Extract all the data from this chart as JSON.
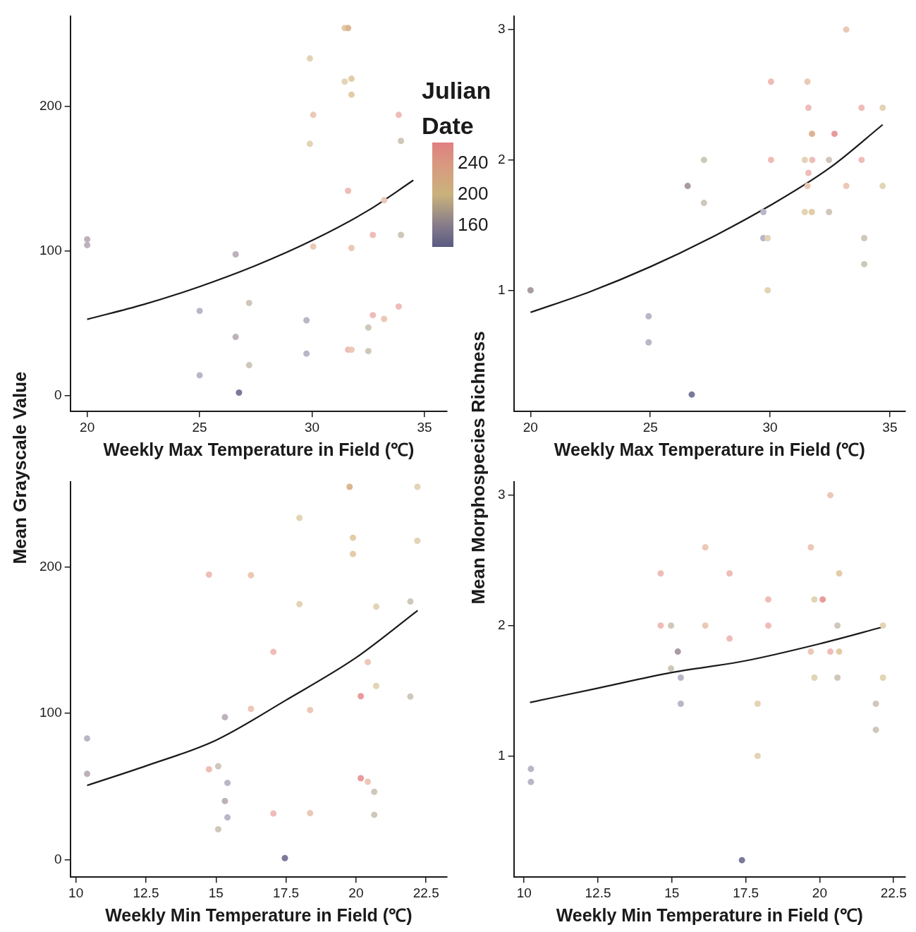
{
  "chart_data": [
    {
      "type": "scatter",
      "xlabel": "Weekly Max Temperature in Field (℃)",
      "ylabel": "Mean Grayscale Value",
      "xlim": [
        19.25,
        36
      ],
      "xticks": [
        20,
        25,
        30,
        35
      ],
      "ylim": [
        -11,
        262
      ],
      "yticks": [
        0,
        100,
        200
      ],
      "marker": "circle",
      "clabel": "Julian Date",
      "clim": [
        133,
        267
      ],
      "cticks": [
        160,
        200,
        240
      ],
      "series": [
        {
          "type": "scatter",
          "x": [
            20,
            20,
            25,
            25,
            26.6,
            26.6,
            26.75,
            27.2,
            27.2,
            29.75,
            29.75,
            29.9,
            29.9,
            30.05,
            30.05,
            31.45,
            31.6,
            31.45,
            31.75,
            31.75,
            31.6,
            31.75,
            31.6,
            31.75,
            32.5,
            32.5,
            32.7,
            32.7,
            33.2,
            33.2,
            33.85,
            33.85,
            33.95,
            33.95
          ],
          "values": [
            108,
            104,
            58.5,
            14,
            97.6,
            40.5,
            2,
            64,
            21,
            52,
            29,
            233,
            174,
            194,
            103,
            254,
            254,
            217,
            219,
            208,
            141.5,
            102,
            31.7,
            31.7,
            47,
            30.7,
            111,
            55.6,
            135,
            53,
            194,
            61.5,
            176,
            111
          ],
          "colors": [
            "#bdb1bb",
            "#bdb1bb",
            "#b9b6c8",
            "#b9b6c8",
            "#bdb1bb",
            "#bdb1bb",
            "#7b7a9c",
            "#cfc7ba",
            "#cfc7ba",
            "#b9b6c8",
            "#b9b6c8",
            "#e2d4b4",
            "#e2d4b4",
            "#ecc8b6",
            "#ecc8b6",
            "#e4cca8",
            "#dcb592",
            "#e2d4b4",
            "#e4cca8",
            "#e4cca8",
            "#efbcb8",
            "#ecc8b6",
            "#efbcb8",
            "#ecc8b6",
            "#cfc7ba",
            "#cfc7ba",
            "#efbcb8",
            "#efbcb8",
            "#ecc8b6",
            "#ecc8b6",
            "#efbcb8",
            "#efbcb8",
            "#cfc7ba",
            "#cfc7ba"
          ]
        },
        {
          "type": "line",
          "color": "#1a1a1a",
          "marker": "none",
          "x": [
            20,
            22.5,
            25,
            27.5,
            30,
            32.5,
            34.5
          ],
          "values": [
            52.7,
            62.9,
            75.3,
            89.9,
            107.2,
            128,
            148.8
          ]
        }
      ]
    },
    {
      "type": "scatter",
      "xlabel": "Weekly Max Temperature in Field (℃)",
      "ylabel": "Mean Morphospecies Richness",
      "xlim": [
        19.3,
        35.65
      ],
      "xticks": [
        20,
        25,
        30,
        35
      ],
      "ylim": [
        0.07,
        3.1
      ],
      "yticks": [
        1,
        2,
        3
      ],
      "marker": "circle",
      "series": [
        {
          "type": "scatter",
          "x": [
            20,
            24.93,
            24.93,
            26.56,
            26.73,
            27.24,
            27.24,
            29.72,
            29.72,
            29.9,
            29.9,
            30.04,
            30.04,
            31.56,
            31.6,
            31.75,
            31.45,
            31.76,
            31.6,
            31.56,
            31.45,
            31.74,
            32.46,
            32.46,
            32.69,
            33.18,
            33.18,
            33.82,
            33.82,
            33.93,
            33.93,
            34.7,
            34.7
          ],
          "values": [
            1.0,
            0.8,
            0.6,
            1.8,
            0.2,
            2.0,
            1.67,
            1.6,
            1.4,
            1.4,
            1.0,
            2.6,
            2.0,
            2.6,
            2.4,
            2.2,
            2.0,
            2.0,
            1.9,
            1.8,
            1.6,
            1.6,
            2.0,
            1.6,
            2.2,
            3.0,
            1.8,
            2.4,
            2.0,
            1.4,
            1.2,
            2.4,
            1.8
          ],
          "colors": [
            "#a89ba3",
            "#b9b6c8",
            "#b9b6c8",
            "#a89ba3",
            "#7b7a9c",
            "#cfc7ba",
            "#cfc7ba",
            "#b9b6c8",
            "#b9b6c8",
            "#e2d4b4",
            "#e2d4b4",
            "#efbcb8",
            "#efbcb8",
            "#ecc8b6",
            "#efbcb8",
            "#ddb394",
            "#e2d4b4",
            "#efbcb8",
            "#efbcb8",
            "#ecc8b6",
            "#e2d4b4",
            "#e4cca8",
            "#cfc7ba",
            "#cfc7ba",
            "#e99a9d",
            "#ecc8b6",
            "#ecc8b6",
            "#efbcb8",
            "#efbcb8",
            "#cfc7ba",
            "#cfc7ba",
            "#e2d4b4",
            "#e2d4b4"
          ]
        },
        {
          "type": "line",
          "color": "#1a1a1a",
          "marker": "none",
          "x": [
            20,
            22.5,
            25,
            27.5,
            30,
            32.5,
            34.7
          ],
          "values": [
            0.83,
            0.99,
            1.18,
            1.4,
            1.65,
            1.94,
            2.27
          ]
        }
      ]
    },
    {
      "type": "scatter",
      "xlabel": "Weekly Min Temperature in Field (℃)",
      "xlim": [
        9.8,
        23.25
      ],
      "xticks": [
        10,
        12.5,
        15,
        17.5,
        20,
        22.5
      ],
      "ylim": [
        -12,
        258
      ],
      "yticks": [
        0,
        100,
        200
      ],
      "marker": "circle",
      "series": [
        {
          "type": "scatter",
          "x": [
            10.4,
            10.4,
            14.75,
            14.75,
            15.08,
            15.08,
            15.32,
            15.32,
            15.41,
            15.41,
            16.25,
            16.25,
            17.05,
            17.05,
            17.46,
            17.98,
            17.98,
            18.36,
            18.36,
            19.77,
            19.89,
            19.89,
            20.17,
            20.17,
            20.42,
            20.42,
            20.65,
            20.65,
            20.72,
            20.72,
            21.94,
            21.94,
            22.19,
            22.19
          ],
          "values": [
            82.8,
            58.6,
            194.8,
            61.7,
            63.8,
            20.7,
            97.3,
            40,
            52.4,
            28.8,
            194.4,
            103,
            142,
            31.5,
            1,
            233.6,
            174.6,
            102.2,
            31.7,
            254.8,
            220,
            208.9,
            111.7,
            55.6,
            135,
            53.2,
            46.3,
            30.6,
            172.9,
            118.7,
            176.4,
            111.4,
            254.8,
            217.9
          ],
          "colors": [
            "#b9b6c8",
            "#bdb1bb",
            "#efbcb8",
            "#efbcb8",
            "#cfc7ba",
            "#cfc7ba",
            "#bdb1bb",
            "#bdb1bb",
            "#b9b6c8",
            "#b9b6c8",
            "#ecc8b6",
            "#ecc8b6",
            "#efbcb8",
            "#efbcb8",
            "#7b7a9c",
            "#e2d4b4",
            "#e2d4b4",
            "#ecc8b6",
            "#ecc8b6",
            "#dcb592",
            "#e4cca8",
            "#e4cca8",
            "#e99a9d",
            "#e99a9d",
            "#ecc8b6",
            "#ecc8b6",
            "#cfc7ba",
            "#cfc7ba",
            "#e2d4b4",
            "#e2d4b4",
            "#cfc7ba",
            "#cfc7ba",
            "#e2d4b4",
            "#e2d4b4"
          ]
        },
        {
          "type": "line",
          "color": "#1a1a1a",
          "marker": "none",
          "x": [
            10.4,
            12.5,
            15,
            17.5,
            20,
            22.2
          ],
          "values": [
            50.7,
            64,
            81.6,
            109,
            138,
            170.2
          ]
        }
      ]
    },
    {
      "type": "scatter",
      "xlabel": "Weekly Min Temperature in Field (℃)",
      "xlim": [
        9.65,
        22.9
      ],
      "xticks": [
        10,
        12.5,
        15,
        17.5,
        20,
        22.5
      ],
      "ylim": [
        0.07,
        3.1
      ],
      "yticks": [
        1,
        2,
        3
      ],
      "marker": "circle",
      "series": [
        {
          "type": "scatter",
          "x": [
            10.23,
            10.23,
            14.62,
            14.62,
            14.97,
            14.97,
            15.2,
            15.3,
            15.3,
            16.13,
            16.13,
            16.95,
            16.95,
            17.37,
            17.9,
            17.9,
            18.26,
            18.26,
            19.7,
            19.7,
            19.82,
            19.82,
            20.1,
            20.36,
            20.36,
            20.6,
            20.6,
            20.66,
            20.66,
            21.9,
            21.9,
            22.14,
            22.14
          ],
          "values": [
            0.9,
            0.8,
            2.4,
            2.0,
            2.0,
            1.67,
            1.8,
            1.6,
            1.4,
            2.6,
            2.0,
            2.4,
            1.9,
            0.2,
            1.4,
            1.0,
            2.2,
            2.0,
            2.6,
            1.8,
            2.2,
            1.6,
            2.2,
            3.0,
            1.8,
            2.0,
            1.6,
            2.4,
            1.8,
            1.4,
            1.2,
            2.0,
            1.6
          ],
          "colors": [
            "#b9b6c8",
            "#b9b6c8",
            "#efbcb8",
            "#efbcb8",
            "#cfc7ba",
            "#cfc7ba",
            "#a89ba3",
            "#b9b6c8",
            "#b9b6c8",
            "#ecc8b6",
            "#ecc8b6",
            "#efbcb8",
            "#efbcb8",
            "#7b7a9c",
            "#e2d4b4",
            "#e2d4b4",
            "#efbcb8",
            "#efbcb8",
            "#ecc8b6",
            "#ecc8b6",
            "#e2d4b4",
            "#e2d4b4",
            "#e99a9d",
            "#ecc8b6",
            "#efbcb8",
            "#cfc7ba",
            "#cfc7ba",
            "#e4cca8",
            "#e4cca8",
            "#cfc7ba",
            "#cfc7ba",
            "#e2d4b4",
            "#e2d4b4"
          ]
        },
        {
          "type": "line",
          "color": "#1a1a1a",
          "marker": "none",
          "x": [
            10.2,
            12.5,
            15,
            17.5,
            20,
            22.15
          ],
          "values": [
            1.41,
            1.52,
            1.64,
            1.73,
            1.86,
            1.99
          ]
        }
      ]
    }
  ]
}
